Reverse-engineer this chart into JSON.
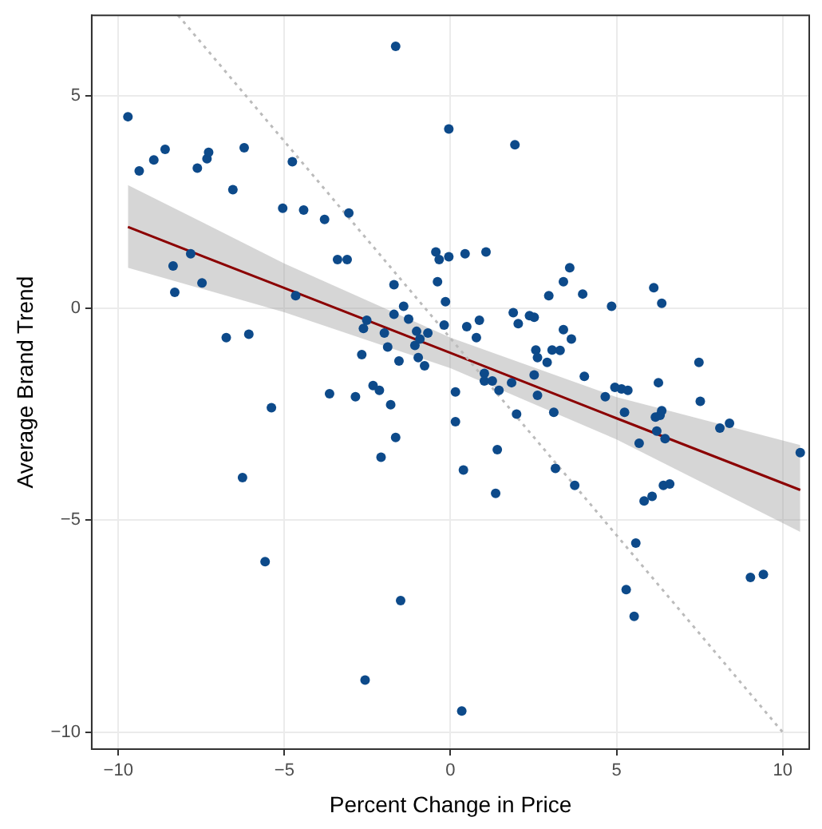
{
  "chart_data": {
    "type": "scatter",
    "xlabel": "Percent Change in Price",
    "ylabel": "Average Brand Trend",
    "xlim": [
      -10.8,
      10.8
    ],
    "ylim": [
      -10.4,
      6.9
    ],
    "xticks": [
      {
        "value": -10,
        "label": "−10"
      },
      {
        "value": -5,
        "label": "−5"
      },
      0,
      5,
      10
    ],
    "yticks": [
      {
        "value": -10,
        "label": "−10"
      },
      {
        "value": -5,
        "label": "−5"
      },
      0,
      5
    ],
    "grid": true,
    "legend": false,
    "series": [
      {
        "type": "line",
        "color": "#bbbbbb",
        "line_style": "dotted",
        "marker": "none",
        "x": [
          -8.2,
          10
        ],
        "values": [
          6.9,
          -10.0
        ]
      },
      {
        "type": "scatter",
        "color": "#0d4a8a",
        "marker": "circle",
        "x": [
          -9.71,
          -9.37,
          -8.93,
          -8.59,
          -8.35,
          -8.3,
          -7.82,
          -7.62,
          -7.33,
          -7.28,
          -7.48,
          -6.75,
          -6.55,
          -6.21,
          -6.26,
          -6.07,
          -5.58,
          -5.39,
          -5.05,
          -4.76,
          -4.66,
          -4.42,
          -3.79,
          -3.64,
          -3.4,
          -3.11,
          -3.06,
          -2.86,
          -2.57,
          -2.67,
          -2.62,
          -2.52,
          -2.33,
          -2.14,
          -1.99,
          -1.89,
          -2.09,
          -1.8,
          -1.7,
          -1.65,
          -1.7,
          -1.41,
          -1.55,
          -1.65,
          -1.5,
          -1.26,
          -1.07,
          -1.02,
          -0.97,
          -0.92,
          -0.78,
          -0.68,
          -0.39,
          -0.44,
          -0.34,
          -0.19,
          -0.05,
          -0.15,
          -0.05,
          0.15,
          0.15,
          0.44,
          0.49,
          0.39,
          0.78,
          0.87,
          1.07,
          1.02,
          1.02,
          1.26,
          1.36,
          1.41,
          1.46,
          1.84,
          1.94,
          1.99,
          2.04,
          1.89,
          2.38,
          2.52,
          2.52,
          2.57,
          2.62,
          2.62,
          2.96,
          2.91,
          3.06,
          3.11,
          3.4,
          3.3,
          3.16,
          3.4,
          3.59,
          3.64,
          3.98,
          4.03,
          3.74,
          4.66,
          4.85,
          5.15,
          5.24,
          4.95,
          5.34,
          5.29,
          5.58,
          5.53,
          5.68,
          5.83,
          6.07,
          6.12,
          6.26,
          6.17,
          6.21,
          6.31,
          6.36,
          6.46,
          6.41,
          6.6,
          6.36,
          7.48,
          7.52,
          8.11,
          8.4,
          9.03,
          9.42,
          0.34,
          10.53
        ],
        "values": [
          4.51,
          3.23,
          3.49,
          3.74,
          0.99,
          0.37,
          1.28,
          3.3,
          3.52,
          3.67,
          0.59,
          -0.7,
          2.79,
          3.78,
          -4.0,
          -0.62,
          -5.98,
          -2.35,
          2.35,
          3.45,
          0.29,
          2.31,
          2.09,
          -2.02,
          1.14,
          1.14,
          2.24,
          -2.09,
          -8.77,
          -1.1,
          -0.48,
          -0.29,
          -1.83,
          -1.94,
          -0.59,
          -0.92,
          -3.52,
          -2.28,
          -0.15,
          6.17,
          0.55,
          0.04,
          -1.25,
          -3.05,
          -6.9,
          -0.26,
          -0.88,
          -0.55,
          -1.17,
          -0.73,
          -1.36,
          -0.59,
          0.62,
          1.32,
          1.14,
          -0.4,
          4.22,
          0.15,
          1.21,
          -2.68,
          -1.98,
          1.28,
          -0.44,
          -3.82,
          -0.7,
          -0.29,
          1.32,
          -1.54,
          -1.72,
          -1.72,
          -4.37,
          -3.34,
          -1.94,
          -1.76,
          3.85,
          -2.5,
          -0.37,
          -0.11,
          -0.18,
          -0.22,
          -1.58,
          -0.99,
          -1.17,
          -2.06,
          0.29,
          -1.28,
          -0.99,
          -2.46,
          0.62,
          -1.0,
          -3.78,
          -0.51,
          0.95,
          -0.73,
          0.33,
          -1.61,
          -4.18,
          -2.09,
          0.04,
          -1.91,
          -2.46,
          -1.87,
          -1.94,
          -6.64,
          -5.54,
          -7.27,
          -3.19,
          -4.55,
          -4.44,
          0.48,
          -1.76,
          -2.57,
          -2.9,
          -2.53,
          -2.42,
          -3.08,
          -4.18,
          -4.15,
          0.11,
          -1.28,
          -2.2,
          -2.83,
          -2.72,
          -6.35,
          -6.28,
          -9.5,
          -3.41
        ]
      },
      {
        "type": "line",
        "color": "#8b0000",
        "line_style": "solid",
        "marker": "none",
        "x": [
          -9.71,
          -5,
          0,
          5,
          10.53
        ],
        "values": [
          1.91,
          0.47,
          -1.06,
          -2.6,
          -4.29
        ],
        "lower": [
          0.95,
          -0.1,
          -1.42,
          -3.1,
          -5.28
        ],
        "upper": [
          2.9,
          1.05,
          -0.7,
          -2.1,
          -3.23
        ]
      }
    ]
  }
}
